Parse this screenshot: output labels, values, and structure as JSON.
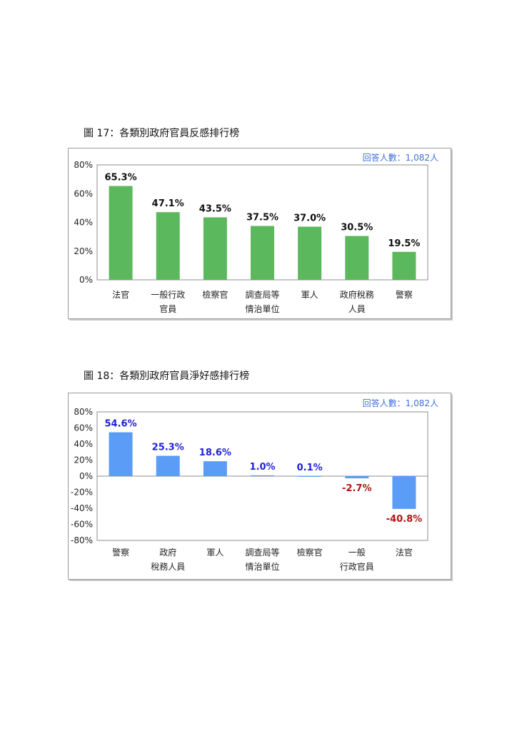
{
  "chart_data": [
    {
      "type": "bar",
      "title": "圖 17：各類別政府官員反感排行榜",
      "annotation": "回答人數：1,082人",
      "categories": [
        [
          "法官"
        ],
        [
          "一般行政",
          "官員"
        ],
        [
          "檢察官"
        ],
        [
          "調查局等",
          "情治單位"
        ],
        [
          "軍人"
        ],
        [
          "政府稅務",
          "人員"
        ],
        [
          "警察"
        ]
      ],
      "values": [
        65.3,
        47.1,
        43.5,
        37.5,
        37.0,
        30.5,
        19.5
      ],
      "value_labels": [
        "65.3%",
        "47.1%",
        "43.5%",
        "37.5%",
        "37.0%",
        "30.5%",
        "19.5%"
      ],
      "yticks": [
        "80%",
        "60%",
        "40%",
        "20%",
        "0%"
      ],
      "ylim": [
        0,
        80
      ],
      "grid": false,
      "colors": {
        "bar": "#5cb85c",
        "label": "#111111",
        "annotation": "#3f6fd8"
      }
    },
    {
      "type": "bar",
      "title": "圖 18：各類別政府官員淨好感排行榜",
      "annotation": "回答人數：1,082人",
      "categories": [
        [
          "警察"
        ],
        [
          "政府",
          "稅務人員"
        ],
        [
          "軍人"
        ],
        [
          "調查局等",
          "情治單位"
        ],
        [
          "檢察官"
        ],
        [
          "一般",
          "行政官員"
        ],
        [
          "法官"
        ]
      ],
      "values": [
        54.6,
        25.3,
        18.6,
        1.0,
        0.1,
        -2.7,
        -40.8
      ],
      "value_labels": [
        "54.6%",
        "25.3%",
        "18.6%",
        "1.0%",
        "0.1%",
        "-2.7%",
        "-40.8%"
      ],
      "yticks": [
        "80%",
        "60%",
        "40%",
        "20%",
        "0%",
        "-20%",
        "-40%",
        "-60%",
        "-80%"
      ],
      "ylim": [
        -80,
        80
      ],
      "grid": false,
      "colors": {
        "bar": "#5b9cf6",
        "positive_label": "#1f1fd6",
        "negative_label": "#b01515",
        "annotation": "#3f6fd8"
      }
    }
  ]
}
